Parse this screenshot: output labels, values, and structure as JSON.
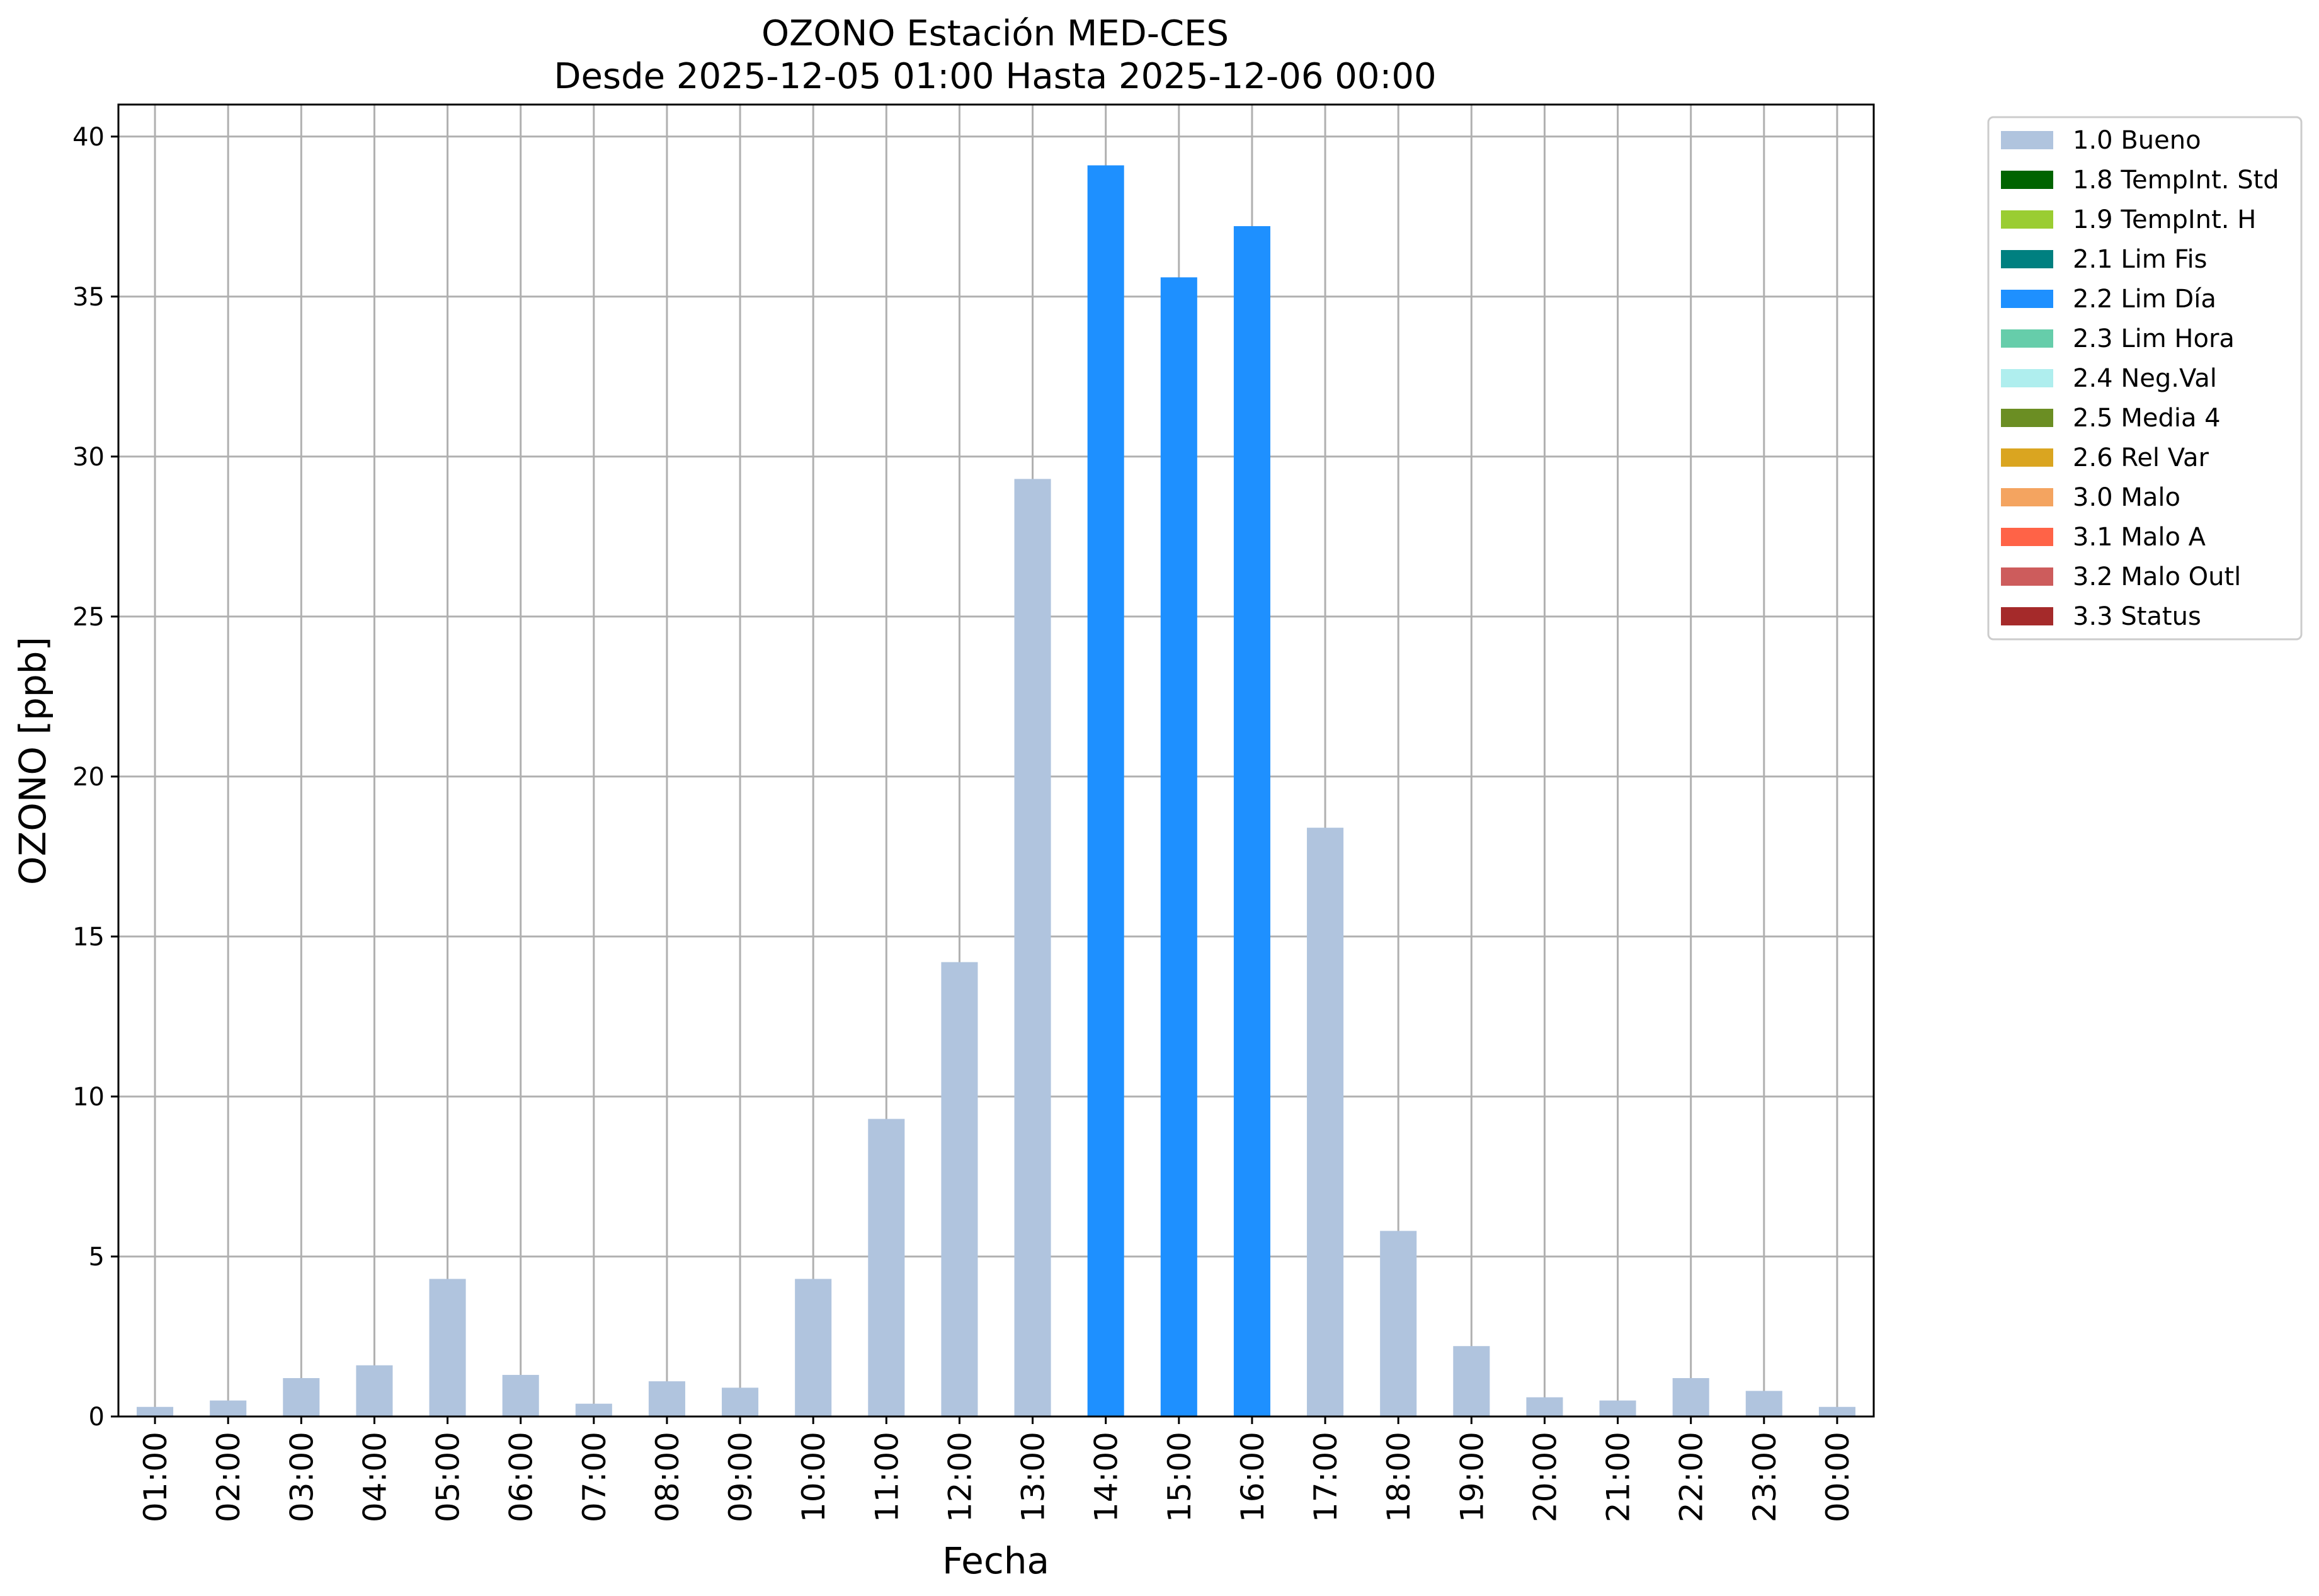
{
  "chart_data": {
    "type": "bar",
    "title_line1": "OZONO Estación MED-CES",
    "title_line2": "Desde 2025-12-05 01:00 Hasta 2025-12-06 00:00",
    "xlabel": "Fecha",
    "ylabel": "OZONO [ppb]",
    "ylim": [
      0,
      41
    ],
    "yticks": [
      0,
      5,
      10,
      15,
      20,
      25,
      30,
      35,
      40
    ],
    "grid": true,
    "legend_position": "outside-right-top",
    "categories": [
      "01:00",
      "02:00",
      "03:00",
      "04:00",
      "05:00",
      "06:00",
      "07:00",
      "08:00",
      "09:00",
      "10:00",
      "11:00",
      "12:00",
      "13:00",
      "14:00",
      "15:00",
      "16:00",
      "17:00",
      "18:00",
      "19:00",
      "20:00",
      "21:00",
      "22:00",
      "23:00",
      "00:00"
    ],
    "values": [
      0.3,
      0.5,
      1.2,
      1.6,
      4.3,
      1.3,
      0.4,
      1.1,
      0.9,
      4.3,
      9.3,
      14.2,
      29.3,
      39.1,
      35.6,
      37.2,
      18.4,
      5.8,
      2.2,
      0.6,
      0.5,
      1.2,
      0.8,
      0.3
    ],
    "flags": [
      "1.0 Bueno",
      "1.0 Bueno",
      "1.0 Bueno",
      "1.0 Bueno",
      "1.0 Bueno",
      "1.0 Bueno",
      "1.0 Bueno",
      "1.0 Bueno",
      "1.0 Bueno",
      "1.0 Bueno",
      "1.0 Bueno",
      "1.0 Bueno",
      "1.0 Bueno",
      "2.2 Lim Día",
      "2.2 Lim Día",
      "2.2 Lim Día",
      "1.0 Bueno",
      "1.0 Bueno",
      "1.0 Bueno",
      "1.0 Bueno",
      "1.0 Bueno",
      "1.0 Bueno",
      "1.0 Bueno",
      "1.0 Bueno"
    ],
    "legend": [
      {
        "label": "1.0 Bueno",
        "color": "#b0c4de"
      },
      {
        "label": "1.8 TempInt. Std",
        "color": "#006400"
      },
      {
        "label": "1.9 TempInt. H",
        "color": "#9acd32"
      },
      {
        "label": "2.1 Lim Fis",
        "color": "#008080"
      },
      {
        "label": "2.2 Lim Día",
        "color": "#1e90ff"
      },
      {
        "label": "2.3 Lim Hora",
        "color": "#66cdaa"
      },
      {
        "label": "2.4 Neg.Val",
        "color": "#afeeee"
      },
      {
        "label": "2.5 Media 4",
        "color": "#6b8e23"
      },
      {
        "label": "2.6 Rel Var",
        "color": "#daa520"
      },
      {
        "label": "3.0 Malo",
        "color": "#f4a460"
      },
      {
        "label": "3.1 Malo A",
        "color": "#ff6347"
      },
      {
        "label": "3.2 Malo Outl",
        "color": "#cd5c5c"
      },
      {
        "label": "3.3 Status",
        "color": "#a52a2a"
      }
    ]
  }
}
